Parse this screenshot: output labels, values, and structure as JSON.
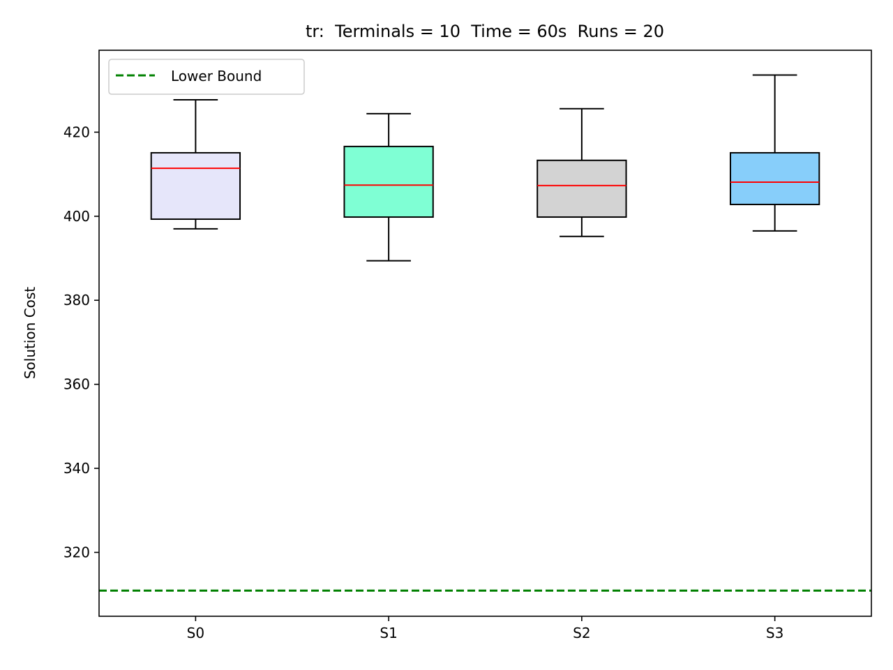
{
  "chart_data": {
    "type": "box",
    "title": "tr:  Terminals = 10  Time = 60s  Runs = 20",
    "xlabel": "",
    "ylabel": "Solution Cost",
    "ylim": [
      304.8,
      439.5
    ],
    "yticks": [
      320,
      340,
      360,
      380,
      400,
      420
    ],
    "categories": [
      "S0",
      "S1",
      "S2",
      "S3"
    ],
    "boxes": [
      {
        "label": "S0",
        "whisker_low": 397.0,
        "q1": 399.3,
        "median": 411.4,
        "q3": 415.1,
        "whisker_high": 427.7,
        "color": "#e6e6fa"
      },
      {
        "label": "S1",
        "whisker_low": 389.4,
        "q1": 399.8,
        "median": 407.4,
        "q3": 416.6,
        "whisker_high": 424.4,
        "color": "#7fffd4"
      },
      {
        "label": "S2",
        "whisker_low": 395.2,
        "q1": 399.8,
        "median": 407.3,
        "q3": 413.3,
        "whisker_high": 425.6,
        "color": "#d3d3d3"
      },
      {
        "label": "S3",
        "whisker_low": 396.5,
        "q1": 402.8,
        "median": 408.1,
        "q3": 415.1,
        "whisker_high": 433.6,
        "color": "#87cefa"
      }
    ],
    "lower_bound": {
      "name": "Lower Bound",
      "value": 310.9,
      "color": "#008000"
    },
    "legend": {
      "placement": "top-left",
      "entries": [
        "Lower Bound"
      ]
    },
    "median_color": "#ff0000",
    "grid": false
  }
}
